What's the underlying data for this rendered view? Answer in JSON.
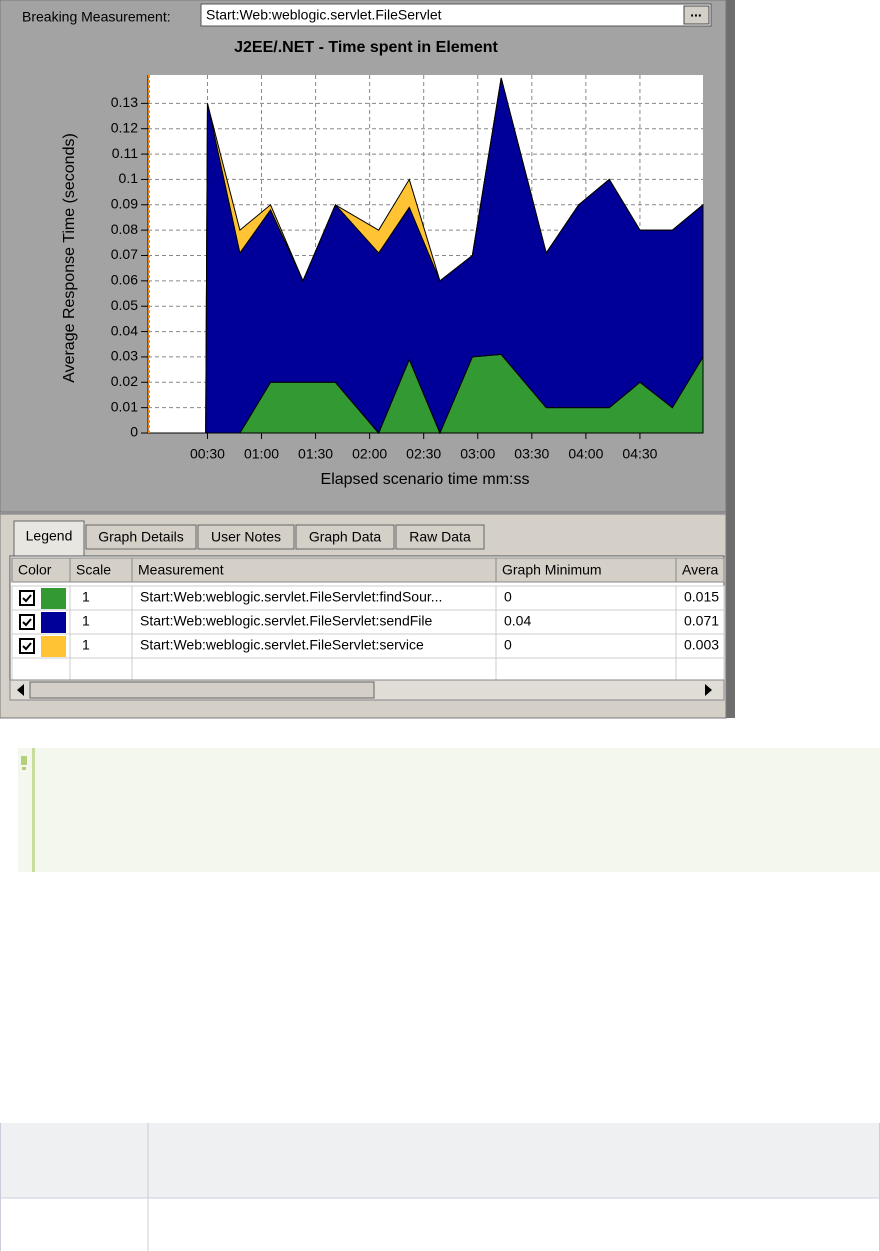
{
  "toolbar": {
    "label": "Breaking Measurement:",
    "field": "Start:Web:weblogic.servlet.FileServlet",
    "button": "..."
  },
  "chart_data": {
    "type": "stacked_area",
    "title": "J2EE/.NET - Time spent in Element",
    "x_label": "Elapsed scenario time mm:ss",
    "y_label": "Average Response Time (seconds)",
    "x": [
      0,
      29,
      30,
      48,
      65,
      83,
      101,
      125,
      142,
      159,
      177,
      193,
      218,
      236,
      253,
      270,
      288,
      305
    ],
    "series": [
      {
        "name": "Start:Web:weblogic.servlet.FileServlet:findSour...",
        "color": "#339933",
        "values": [
          0,
          0,
          0,
          0,
          0.02,
          0.02,
          0.02,
          0,
          0.029,
          0,
          0.03,
          0.031,
          0.01,
          0.01,
          0.01,
          0.02,
          0.01,
          0.03
        ]
      },
      {
        "name": "Start:Web:weblogic.servlet.FileServlet:sendFile",
        "color": "#000099",
        "values": [
          0,
          0,
          0.13,
          0.071,
          0.068,
          0.04,
          0.07,
          0.071,
          0.06,
          0.06,
          0.04,
          0.109,
          0.061,
          0.08,
          0.09,
          0.06,
          0.07,
          0.06
        ]
      },
      {
        "name": "Start:Web:weblogic.servlet.FileServlet:service",
        "color": "#ffc333",
        "values": [
          0,
          0,
          0,
          0.009,
          0.002,
          0,
          0,
          0.009,
          0.011,
          0,
          0,
          0,
          0,
          0,
          0,
          0,
          0,
          0
        ]
      }
    ],
    "xlim": [
      -3,
      305
    ],
    "xticks": [
      {
        "value": 30,
        "label": "00:30"
      },
      {
        "value": 60,
        "label": "01:00"
      },
      {
        "value": 90,
        "label": "01:30"
      },
      {
        "value": 120,
        "label": "02:00"
      },
      {
        "value": 150,
        "label": "02:30"
      },
      {
        "value": 180,
        "label": "03:00"
      },
      {
        "value": 210,
        "label": "03:30"
      },
      {
        "value": 240,
        "label": "04:00"
      },
      {
        "value": 270,
        "label": "04:30"
      }
    ],
    "ylim": [
      0,
      0.14
    ],
    "yticks": [
      0,
      0.01,
      0.02,
      0.03,
      0.04,
      0.05,
      0.06,
      0.07,
      0.08,
      0.09,
      0.1,
      0.11,
      0.12,
      0.13
    ],
    "grid": true
  },
  "tabs": [
    "Legend",
    "Graph Details",
    "User Notes",
    "Graph Data",
    "Raw Data"
  ],
  "legend_table": {
    "headers": [
      "Color",
      "Scale",
      "Measurement",
      "Graph Minimum",
      "Avera"
    ],
    "rows": [
      {
        "scale": 1,
        "minimum": 0,
        "average": 0.015
      },
      {
        "scale": 1,
        "minimum": 0.04,
        "average": 0.071
      },
      {
        "scale": 1,
        "minimum": 0,
        "average": 0.003
      }
    ]
  }
}
